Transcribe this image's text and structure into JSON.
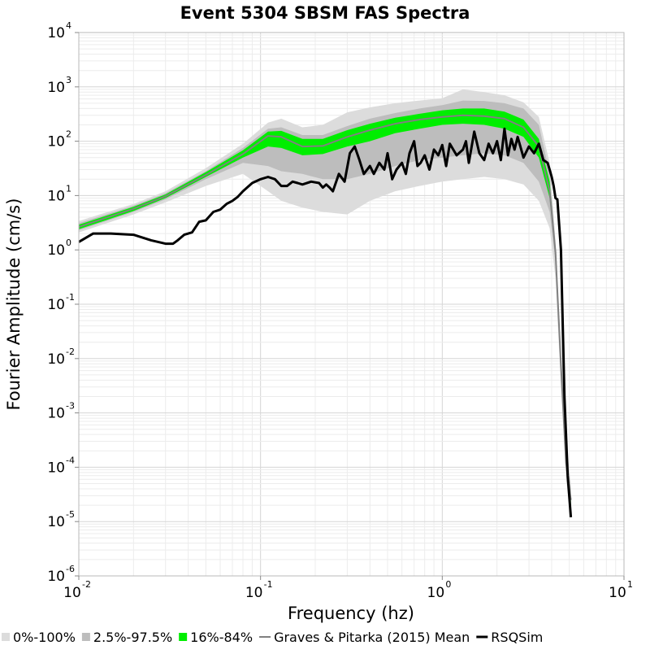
{
  "chart_data": {
    "type": "line",
    "title": "Event 5304 SBSM FAS Spectra",
    "xlabel": "Frequency (hz)",
    "ylabel": "Fourier Amplitude (cm/s)",
    "x_scale": "log",
    "y_scale": "log",
    "xlim": [
      0.01,
      10
    ],
    "ylim": [
      1e-06,
      10000
    ],
    "x_ticks": [
      {
        "value": 0.01,
        "base": "10",
        "exp": "-2"
      },
      {
        "value": 0.1,
        "base": "10",
        "exp": "-1"
      },
      {
        "value": 1,
        "base": "10",
        "exp": "0"
      },
      {
        "value": 10,
        "base": "10",
        "exp": "1"
      }
    ],
    "y_ticks": [
      {
        "value": 10000,
        "base": "10",
        "exp": "4"
      },
      {
        "value": 1000,
        "base": "10",
        "exp": "3"
      },
      {
        "value": 100,
        "base": "10",
        "exp": "2"
      },
      {
        "value": 10,
        "base": "10",
        "exp": "1"
      },
      {
        "value": 1,
        "base": "10",
        "exp": "0"
      },
      {
        "value": 0.1,
        "base": "10",
        "exp": "-1"
      },
      {
        "value": 0.01,
        "base": "10",
        "exp": "-2"
      },
      {
        "value": 0.001,
        "base": "10",
        "exp": "-3"
      },
      {
        "value": 0.0001,
        "base": "10",
        "exp": "-4"
      },
      {
        "value": 1e-05,
        "base": "10",
        "exp": "-5"
      },
      {
        "value": 1e-06,
        "base": "10",
        "exp": "-6"
      }
    ],
    "grid": true,
    "legend_position": "bottom",
    "x": [
      0.01,
      0.02,
      0.03,
      0.05,
      0.08,
      0.11,
      0.13,
      0.17,
      0.22,
      0.3,
      0.4,
      0.55,
      0.75,
      1.0,
      1.3,
      1.7,
      2.2,
      2.8,
      3.4,
      3.9,
      4.2,
      4.5,
      4.8,
      5.1
    ],
    "series": [
      {
        "name": "0%-100%",
        "kind": "band",
        "color": "#dcdcdc",
        "lower": [
          2.1,
          4.5,
          7.5,
          15,
          25,
          12,
          8,
          6,
          5,
          4.5,
          8,
          12,
          15,
          18,
          20,
          22,
          20,
          16,
          8,
          2.5,
          0.3,
          0.003,
          6e-05,
          1.2e-05
        ],
        "upper": [
          3.4,
          7,
          12,
          32,
          90,
          220,
          260,
          180,
          200,
          340,
          420,
          500,
          560,
          620,
          900,
          800,
          700,
          520,
          280,
          40,
          1.5,
          0.012,
          0.0003,
          5e-05
        ]
      },
      {
        "name": "2.5%-97.5%",
        "kind": "band",
        "color": "#bdbdbd",
        "lower": [
          2.3,
          5,
          8.5,
          20,
          40,
          35,
          28,
          25,
          20,
          20,
          25,
          35,
          45,
          50,
          55,
          60,
          55,
          40,
          18,
          5,
          0.6,
          0.005,
          9e-05,
          1.8e-05
        ],
        "upper": [
          3.1,
          6.5,
          11,
          28,
          75,
          170,
          180,
          130,
          130,
          190,
          260,
          330,
          400,
          460,
          560,
          550,
          500,
          400,
          200,
          25,
          1.2,
          0.01,
          0.0002,
          4e-05
        ]
      },
      {
        "name": "16%-84%",
        "kind": "band",
        "color": "#00ee00",
        "lower": [
          2.4,
          5.2,
          9,
          22,
          50,
          80,
          75,
          55,
          58,
          80,
          100,
          140,
          170,
          200,
          210,
          200,
          170,
          120,
          50,
          9,
          0.8,
          0.006,
          0.0001,
          2e-05
        ],
        "upper": [
          2.9,
          6.2,
          10.5,
          27,
          68,
          150,
          155,
          110,
          110,
          160,
          210,
          270,
          320,
          370,
          400,
          400,
          350,
          250,
          110,
          18,
          1.0,
          0.009,
          0.00015,
          3e-05
        ]
      },
      {
        "name": "Graves & Pitarka (2015) Mean",
        "kind": "line",
        "color": "#808080",
        "width": 2,
        "values": [
          2.65,
          5.7,
          9.7,
          24,
          58,
          125,
          120,
          80,
          82,
          120,
          160,
          210,
          250,
          280,
          300,
          290,
          260,
          180,
          80,
          12,
          0.9,
          0.0075,
          0.00012,
          2.5e-05
        ]
      }
    ],
    "rsqsim": {
      "name": "RSQSim",
      "color": "#000000",
      "width": 3,
      "x": [
        0.01,
        0.012,
        0.015,
        0.02,
        0.025,
        0.03,
        0.033,
        0.035,
        0.038,
        0.042,
        0.046,
        0.05,
        0.055,
        0.06,
        0.065,
        0.07,
        0.075,
        0.08,
        0.09,
        0.1,
        0.11,
        0.12,
        0.13,
        0.14,
        0.15,
        0.16,
        0.17,
        0.19,
        0.21,
        0.22,
        0.23,
        0.24,
        0.25,
        0.27,
        0.29,
        0.31,
        0.33,
        0.35,
        0.37,
        0.4,
        0.42,
        0.45,
        0.48,
        0.5,
        0.53,
        0.56,
        0.6,
        0.63,
        0.66,
        0.7,
        0.73,
        0.76,
        0.8,
        0.85,
        0.9,
        0.95,
        1.0,
        1.05,
        1.1,
        1.2,
        1.3,
        1.35,
        1.4,
        1.5,
        1.6,
        1.7,
        1.8,
        1.9,
        2.0,
        2.1,
        2.2,
        2.3,
        2.4,
        2.5,
        2.6,
        2.8,
        3.0,
        3.2,
        3.4,
        3.6,
        3.8,
        3.9,
        4.0,
        4.1,
        4.2,
        4.3,
        4.5,
        4.7,
        4.9,
        5.1
      ],
      "values": [
        1.4,
        2.0,
        2.0,
        1.9,
        1.5,
        1.3,
        1.3,
        1.5,
        1.9,
        2.1,
        3.3,
        3.5,
        5.0,
        5.5,
        7.0,
        8.0,
        9.5,
        12,
        17,
        20,
        22,
        20,
        15,
        15,
        18,
        17,
        16,
        18,
        17,
        14,
        16,
        14,
        12,
        25,
        18,
        60,
        80,
        45,
        25,
        35,
        25,
        40,
        30,
        60,
        20,
        30,
        40,
        25,
        60,
        100,
        35,
        40,
        55,
        30,
        70,
        55,
        85,
        35,
        90,
        55,
        70,
        100,
        40,
        150,
        60,
        45,
        90,
        60,
        100,
        45,
        170,
        55,
        110,
        70,
        120,
        50,
        80,
        60,
        90,
        45,
        40,
        30,
        22,
        15,
        9,
        8.5,
        1.0,
        0.002,
        7e-05,
        1.2e-05
      ]
    },
    "legend": [
      {
        "label": "0%-100%",
        "swatch": "box",
        "color": "#dcdcdc"
      },
      {
        "label": "2.5%-97.5%",
        "swatch": "box",
        "color": "#bdbdbd"
      },
      {
        "label": "16%-84%",
        "swatch": "box",
        "color": "#00ee00"
      },
      {
        "label": "Graves & Pitarka (2015) Mean",
        "swatch": "line",
        "color": "#808080"
      },
      {
        "label": "RSQSim",
        "swatch": "thickline",
        "color": "#000000"
      }
    ]
  }
}
